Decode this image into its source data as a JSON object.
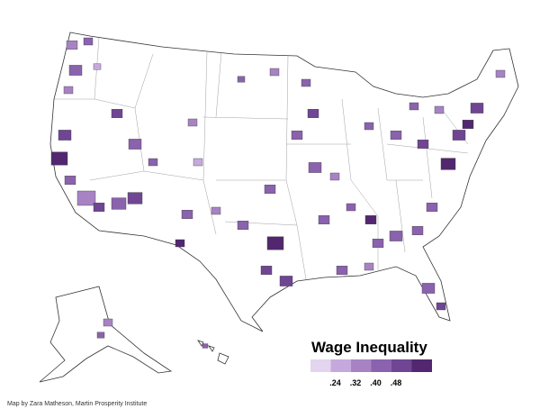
{
  "legend": {
    "title": "Wage Inequality",
    "labels": [
      ".24",
      ".32",
      ".40",
      ".48"
    ],
    "colors": [
      "#e3d4ef",
      "#c6a9dc",
      "#a783c4",
      "#8a62ad",
      "#6f4594",
      "#52276f"
    ]
  },
  "credit": "Map by Zara Matheson, Martin Prosperity Institute"
}
